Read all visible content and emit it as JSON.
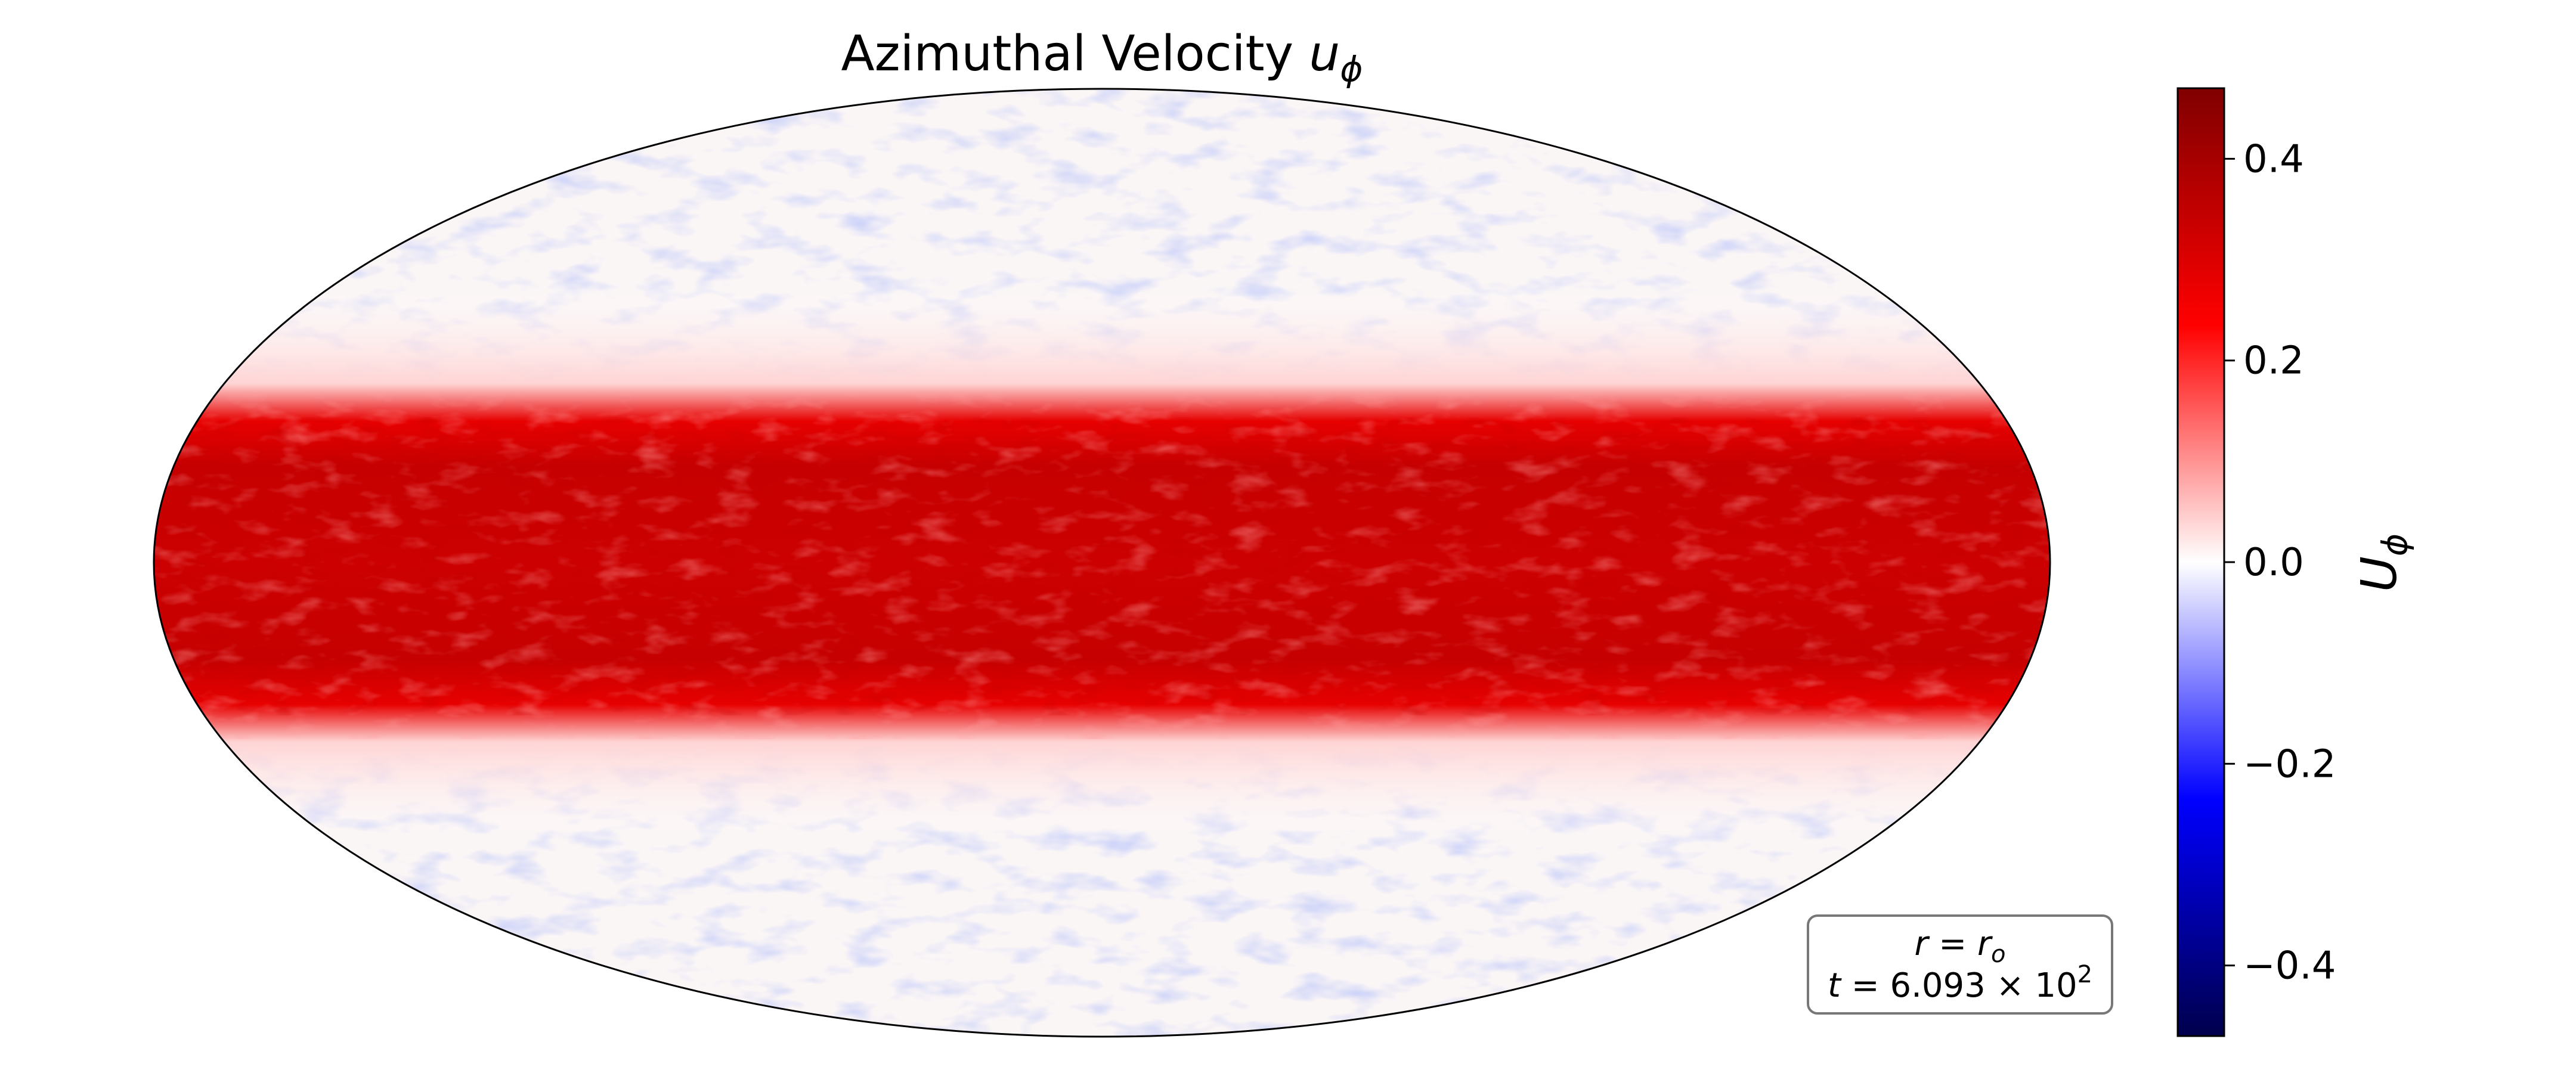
{
  "chart_data": {
    "type": "heatmap",
    "projection": "mollweide",
    "title": {
      "main": "Azimuthal Velocity ",
      "symbol": "u",
      "subscript": "ϕ"
    },
    "colormap": "seismic",
    "colorbar": {
      "label_symbol": "U",
      "label_subscript": "ϕ",
      "range": [
        -0.47,
        0.47
      ],
      "ticks": [
        0.4,
        0.2,
        0.0,
        -0.2,
        -0.4
      ],
      "tick_labels": [
        "0.4",
        "0.2",
        "0.0",
        "−0.2",
        "−0.4"
      ],
      "stops": [
        "#00004c",
        "#0000ff",
        "#ffffff",
        "#ff0000",
        "#800000"
      ]
    },
    "field_description_levels": {
      "latitudes_deg": [
        90,
        45,
        28,
        22,
        15,
        0,
        -15,
        -22,
        -28,
        -45,
        -90
      ],
      "mean_u_phi": [
        0.0,
        0.0,
        0.04,
        0.28,
        0.34,
        0.33,
        0.34,
        0.28,
        0.04,
        0.0,
        0.0
      ]
    },
    "annotation": {
      "line1_lhs": "r",
      "line1_rhs": "r",
      "line1_rhs_sub": "o",
      "line2_lhs": "t",
      "line2_value": "6.093",
      "line2_times": "×",
      "line2_base": "10",
      "line2_exp": "2"
    },
    "grid": false,
    "legend": "none"
  }
}
